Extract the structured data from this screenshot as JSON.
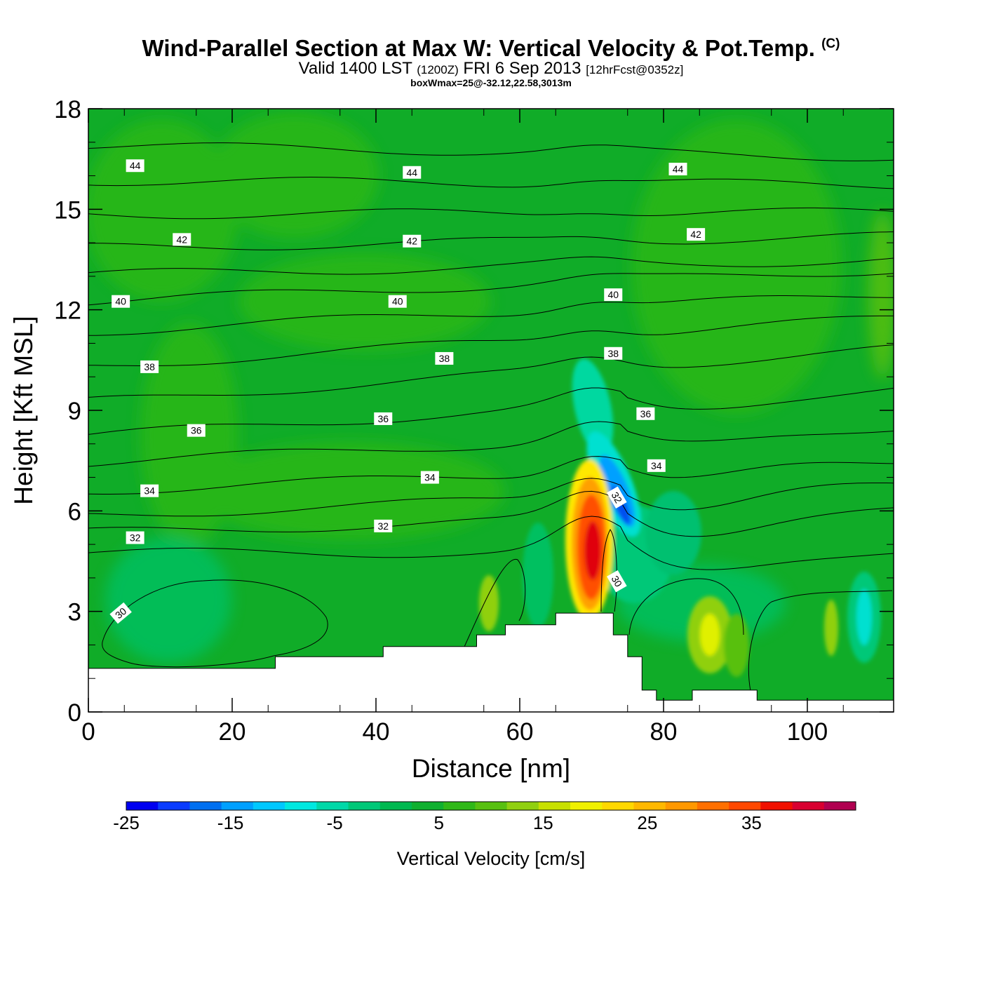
{
  "title": "Wind-Parallel Section at Max W: Vertical Velocity & Pot.Temp.",
  "copyright_mark": "(C)",
  "valid_line": {
    "valid": "Valid 1400 LST",
    "utc": "(1200Z)",
    "date": "FRI 6 Sep 2013",
    "forecast": "[12hrFcst@0352z]"
  },
  "box_line": "boxWmax=25@-32.12,22.58,3013m",
  "chart_data": {
    "type": "heatmap",
    "title": "Wind-Parallel Section at Max W: Vertical Velocity & Pot.Temp.",
    "xlabel": "Distance [nm]",
    "ylabel": "Height [Kft MSL]",
    "xlim": [
      0,
      112
    ],
    "ylim": [
      0,
      18
    ],
    "x_ticks": [
      0,
      20,
      40,
      60,
      80,
      100
    ],
    "y_ticks": [
      0,
      3,
      6,
      9,
      12,
      15,
      18
    ],
    "colorbar": {
      "label": "Vertical Velocity [cm/s]",
      "tick_labels": [
        "-25",
        "-15",
        "-5",
        "5",
        "15",
        "25",
        "35"
      ],
      "tick_values": [
        -25,
        -15,
        -5,
        5,
        15,
        25,
        35
      ],
      "min": -25,
      "max": 45,
      "colors": [
        "#0000f0",
        "#0a3cff",
        "#0070f0",
        "#00a0ff",
        "#00c8ff",
        "#00e8e0",
        "#00d8a8",
        "#00c878",
        "#00b850",
        "#10b030",
        "#30b818",
        "#58c010",
        "#90d010",
        "#c8e000",
        "#f0f000",
        "#ffd800",
        "#ffb800",
        "#ff9800",
        "#ff7000",
        "#ff4800",
        "#f01000",
        "#d80030",
        "#b00050"
      ]
    },
    "terrain_profile": [
      [
        0,
        1.3
      ],
      [
        26,
        1.3
      ],
      [
        26,
        1.65
      ],
      [
        41,
        1.65
      ],
      [
        41,
        1.95
      ],
      [
        54,
        1.95
      ],
      [
        54,
        2.3
      ],
      [
        58,
        2.3
      ],
      [
        58,
        2.6
      ],
      [
        65,
        2.6
      ],
      [
        65,
        2.95
      ],
      [
        73,
        2.95
      ],
      [
        73,
        2.3
      ],
      [
        75,
        2.3
      ],
      [
        75,
        1.65
      ],
      [
        77,
        1.65
      ],
      [
        77,
        0.65
      ],
      [
        79,
        0.65
      ],
      [
        79,
        0.35
      ],
      [
        84,
        0.35
      ],
      [
        84,
        0.65
      ],
      [
        93,
        0.65
      ],
      [
        93,
        0.35
      ],
      [
        112,
        0.35
      ]
    ],
    "vertical_velocity_features": [
      {
        "name": "updraft core",
        "x": 70.5,
        "y": 5.0,
        "value": 35
      },
      {
        "name": "downdraft core",
        "x": 74,
        "y": 6.4,
        "value": -20
      },
      {
        "name": "upper downdraft",
        "x": 72,
        "y": 8.2,
        "value": -12
      },
      {
        "name": "weak updraft",
        "x": 86.5,
        "y": 2.3,
        "value": 12
      },
      {
        "name": "weak downdraft",
        "x": 107.5,
        "y": 2.5,
        "value": -10
      },
      {
        "name": "weak updraft lee",
        "x": 56.5,
        "y": 3.3,
        "value": 9
      }
    ],
    "potential_temperature_contours": [
      {
        "level": 30,
        "label": "30"
      },
      {
        "level": 32,
        "label": "32"
      },
      {
        "level": 34,
        "label": "34"
      },
      {
        "level": 36,
        "label": "36"
      },
      {
        "level": 38,
        "label": "38"
      },
      {
        "level": 40,
        "label": "40"
      },
      {
        "level": 42,
        "label": "42"
      },
      {
        "level": 44,
        "label": "44"
      }
    ],
    "contour_labels": [
      {
        "text": "44",
        "x": 6.5,
        "y": 16.3
      },
      {
        "text": "44",
        "x": 45,
        "y": 16.1
      },
      {
        "text": "44",
        "x": 82,
        "y": 16.2
      },
      {
        "text": "42",
        "x": 13,
        "y": 14.1
      },
      {
        "text": "42",
        "x": 45,
        "y": 14.05
      },
      {
        "text": "42",
        "x": 84.5,
        "y": 14.25
      },
      {
        "text": "40",
        "x": 4.5,
        "y": 12.25
      },
      {
        "text": "40",
        "x": 43,
        "y": 12.25
      },
      {
        "text": "40",
        "x": 73,
        "y": 12.45
      },
      {
        "text": "38",
        "x": 8.5,
        "y": 10.3
      },
      {
        "text": "38",
        "x": 49.5,
        "y": 10.55
      },
      {
        "text": "38",
        "x": 73,
        "y": 10.7
      },
      {
        "text": "36",
        "x": 15,
        "y": 8.4
      },
      {
        "text": "36",
        "x": 41,
        "y": 8.75
      },
      {
        "text": "36",
        "x": 77.5,
        "y": 8.9
      },
      {
        "text": "34",
        "x": 8.5,
        "y": 6.6
      },
      {
        "text": "34",
        "x": 47.5,
        "y": 7.0
      },
      {
        "text": "34",
        "x": 79,
        "y": 7.35
      },
      {
        "text": "32",
        "x": 6.5,
        "y": 5.2
      },
      {
        "text": "32",
        "x": 41,
        "y": 5.55
      },
      {
        "text": "32",
        "x": 73.5,
        "y": 6.4
      },
      {
        "text": "30",
        "x": 4.5,
        "y": 2.95
      },
      {
        "text": "30",
        "x": 73.5,
        "y": 3.9
      }
    ]
  }
}
